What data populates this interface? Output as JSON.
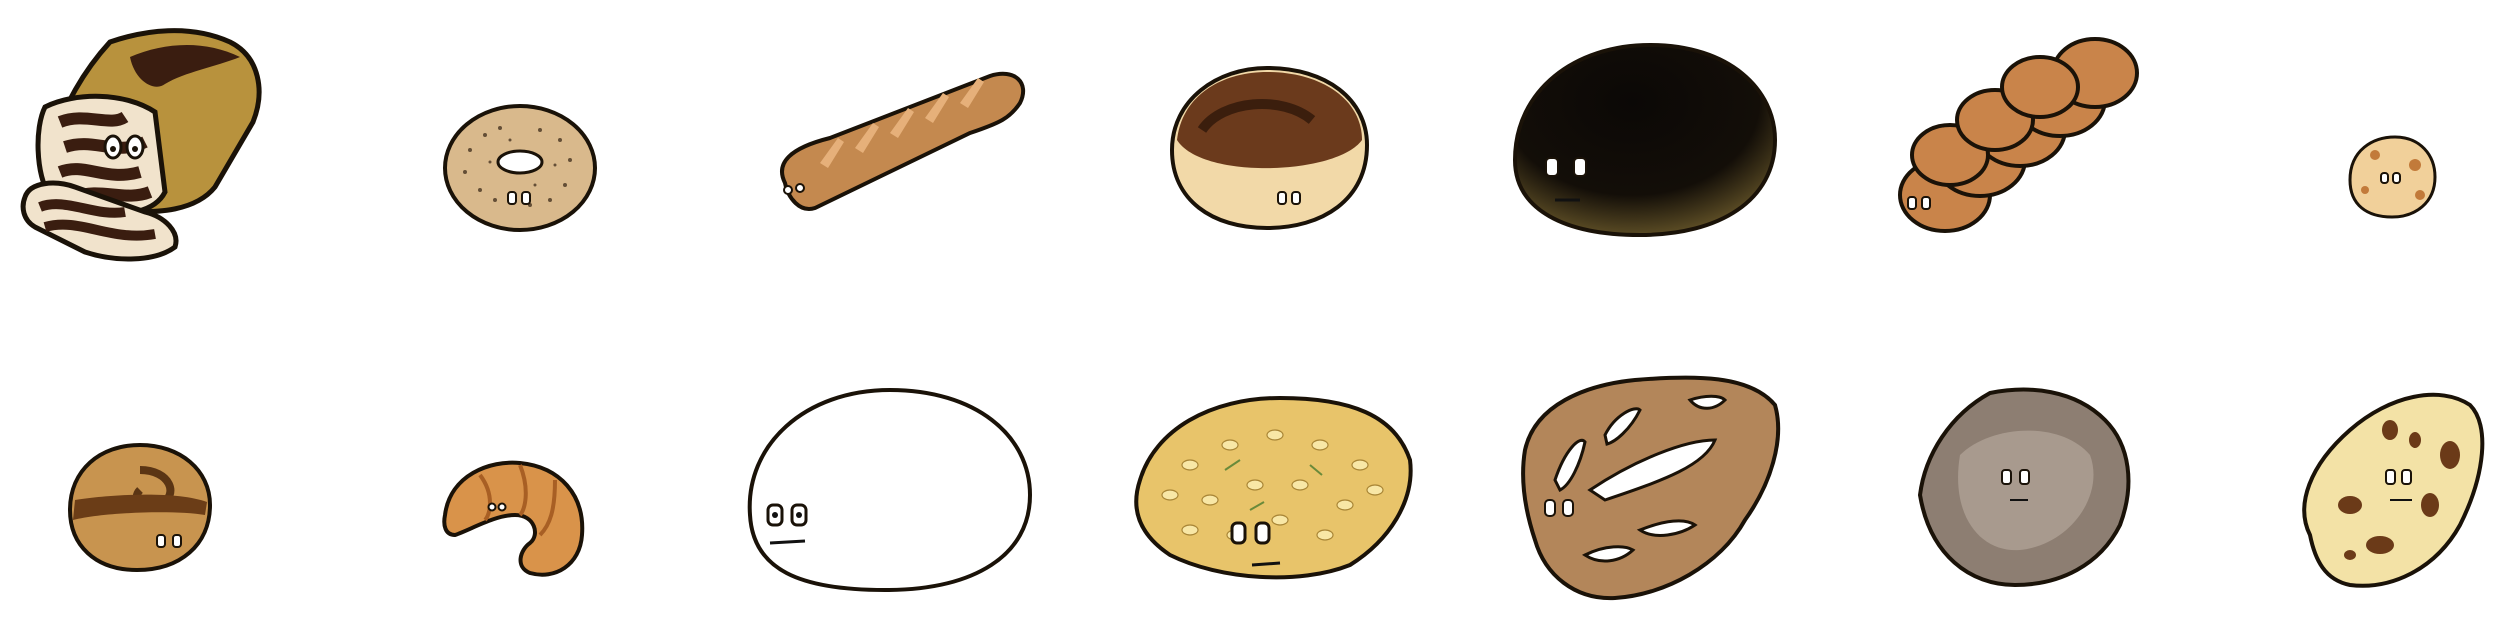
{
  "breads": [
    {
      "name": "marble-loaf",
      "row": 1
    },
    {
      "name": "everything-bagel",
      "row": 1
    },
    {
      "name": "baguette",
      "row": 1
    },
    {
      "name": "burnt-bun",
      "row": 1
    },
    {
      "name": "charred-loaf",
      "row": 1
    },
    {
      "name": "challah",
      "row": 1
    },
    {
      "name": "small-roll",
      "row": 1
    },
    {
      "name": "cinnamon-roll",
      "row": 2
    },
    {
      "name": "croissant",
      "row": 2
    },
    {
      "name": "raw-dough",
      "row": 2
    },
    {
      "name": "focaccia",
      "row": 2
    },
    {
      "name": "fougasse",
      "row": 2
    },
    {
      "name": "stone-loaf",
      "row": 2
    },
    {
      "name": "naan",
      "row": 2
    }
  ],
  "colors": {
    "outline": "#1a1208",
    "crust_gold": "#b8923d",
    "crust_brown": "#c4894f",
    "chocolate": "#3a1d10",
    "charred": "#0b0806",
    "focaccia": "#e8c46a",
    "fougasse": "#b3865a",
    "stone": "#8d7e72",
    "naan": "#f3e2a6"
  }
}
